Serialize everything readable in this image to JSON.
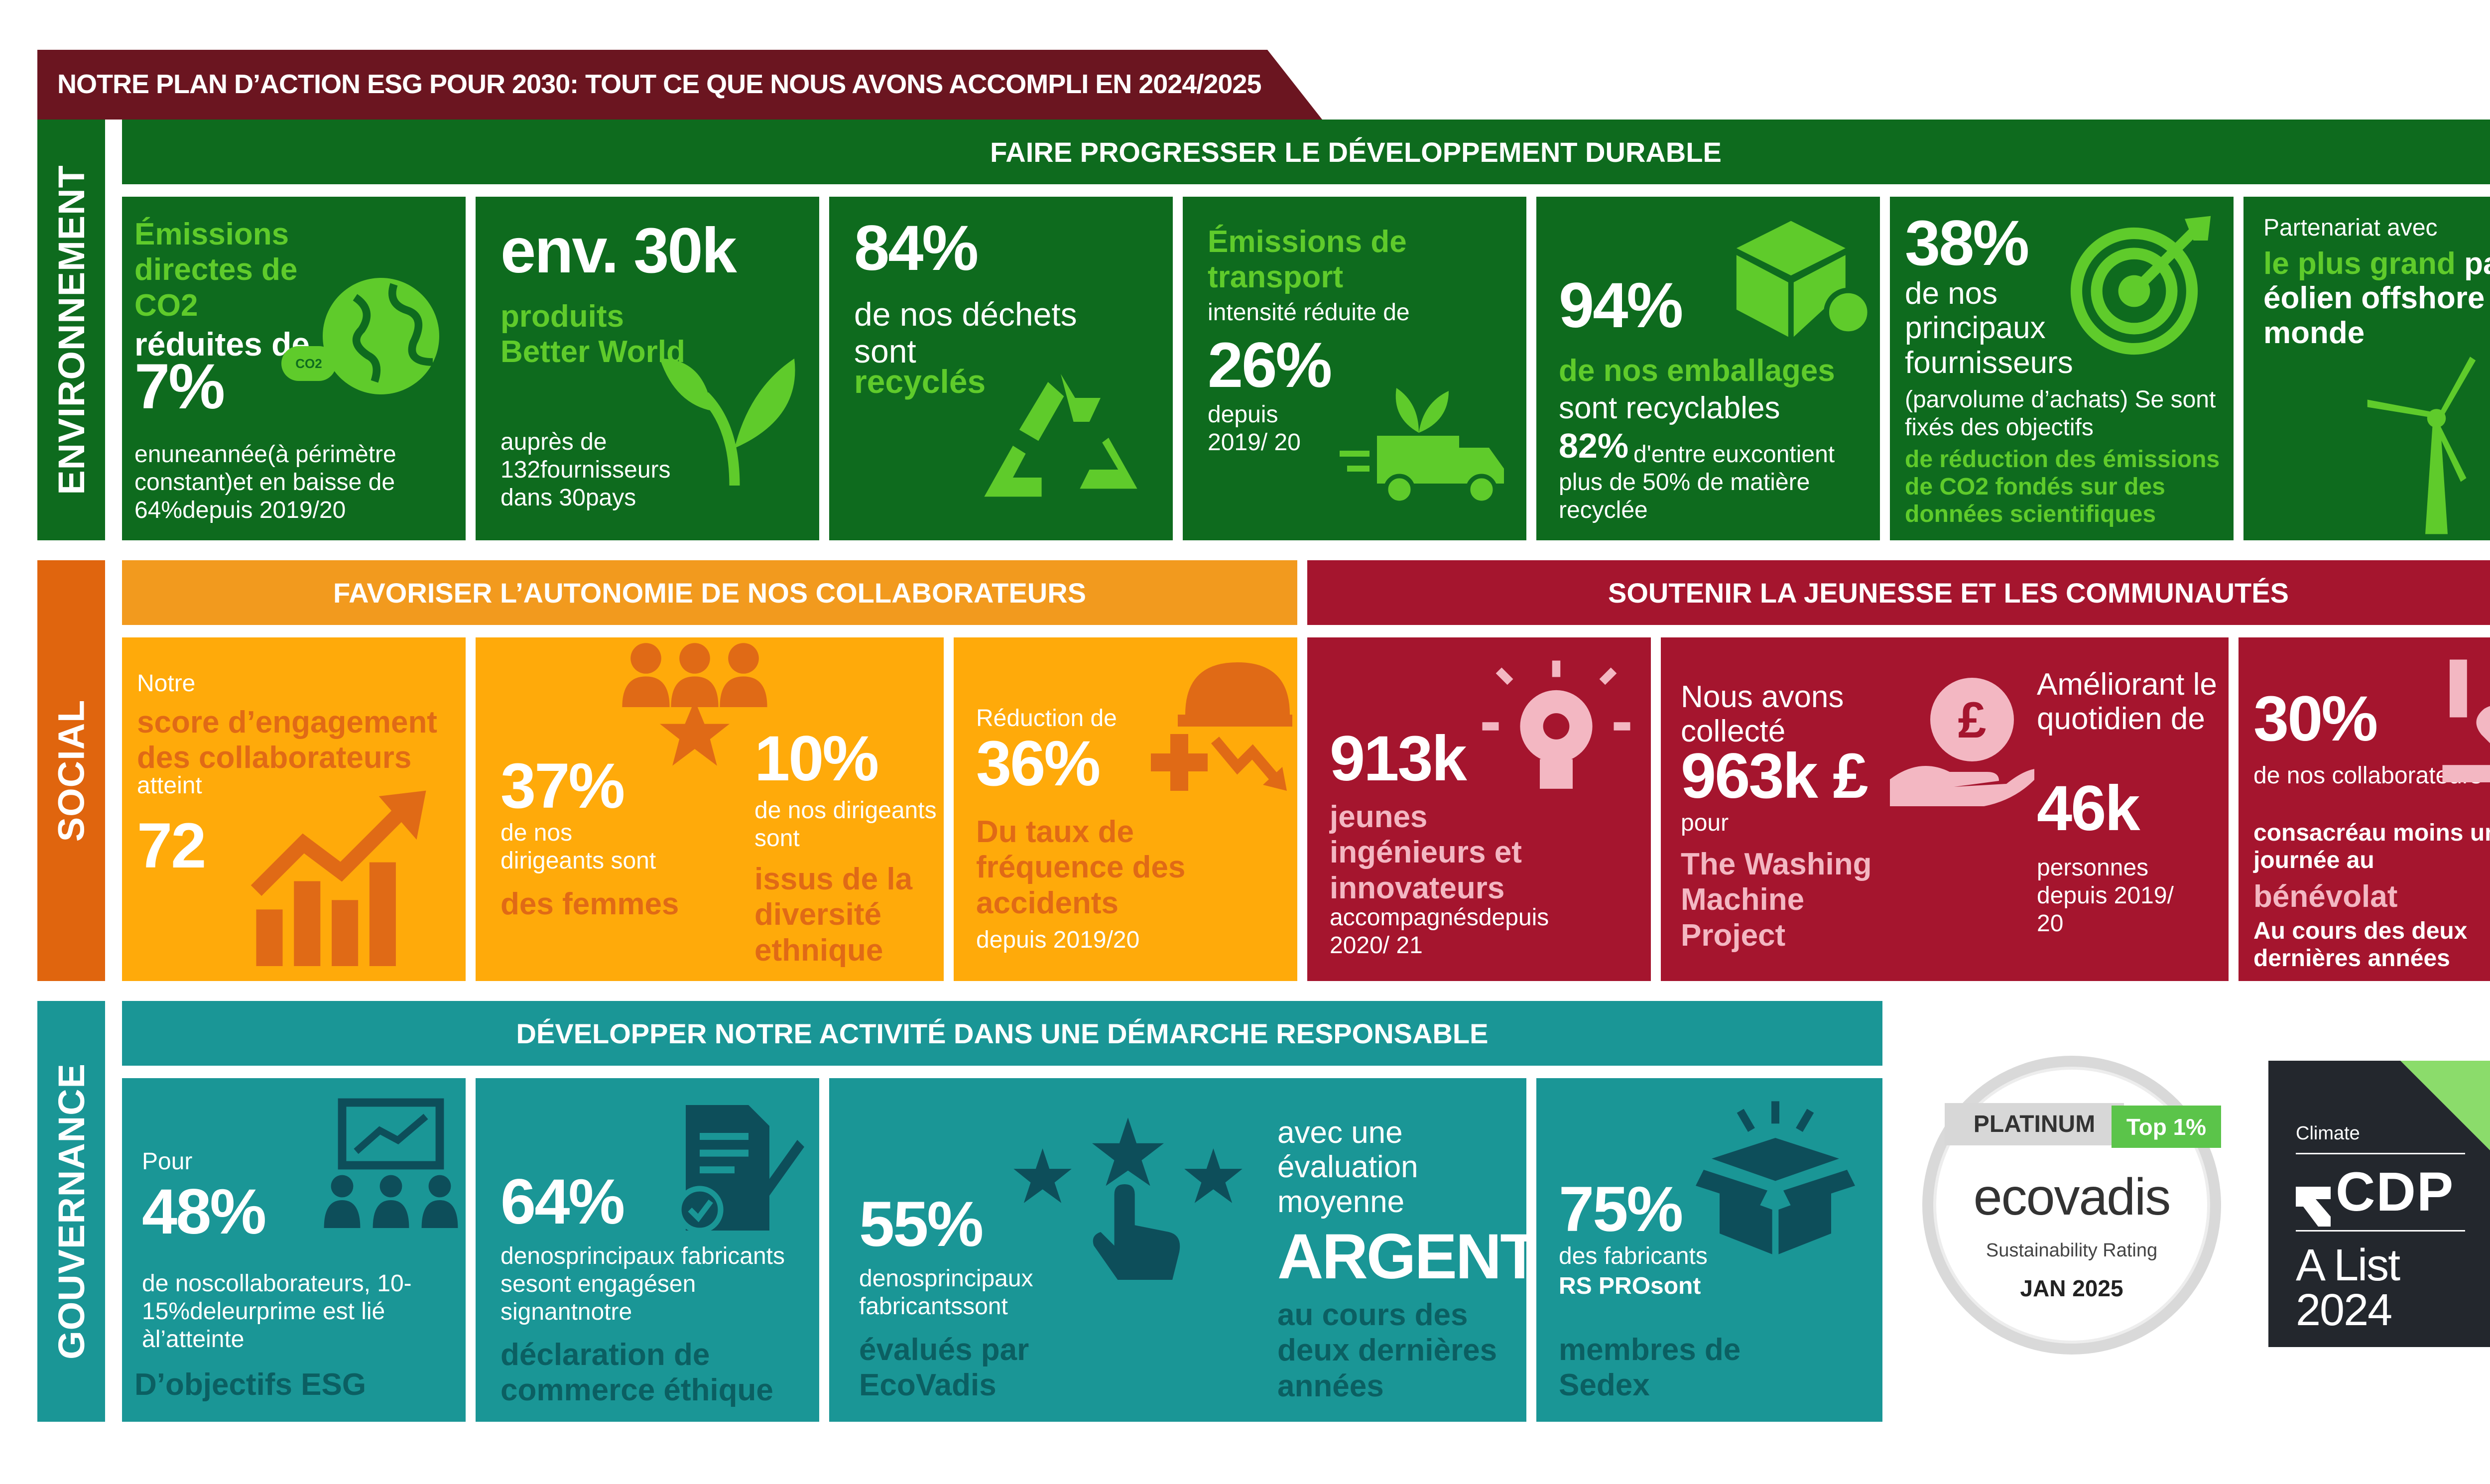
{
  "title": "NOTRE PLAN D’ACTION ESG POUR 2030: TOUT CE QUE NOUS AVONS ACCOMPLI EN 2024/2025",
  "colors": {
    "dark_red": "#6B1520",
    "green": "#0E6B1E",
    "light_green": "#5FCB2B",
    "orange": "#F29A1E",
    "yellow": "#FFAA0A",
    "orange_text": "#E06A16",
    "crimson": "#A5152E",
    "pink": "#F3B7C2",
    "teal": "#1A9696",
    "teal_dark": "#0B5F62",
    "icon_teal": "#0D4E5A"
  },
  "env": {
    "side": "ENVIRONNEMENT",
    "header": "FAIRE PROGRESSER LE DÉVELOPPEMENT DURABLE",
    "c1": {
      "hl": "Émissions directes de CO2",
      "t": "réduites de",
      "big": "7%",
      "d": "enuneannée(à périmètre constant)et en baisse de 64%depuis 2019/20",
      "icon": "globe-icon",
      "co2": "CO2"
    },
    "c2": {
      "big": "env. 30k",
      "hl": "produits Better World",
      "d": "auprès de 132fournisseurs dans 30pays",
      "icon": "leaf-icon"
    },
    "c3": {
      "big": "84%",
      "t": "de nos déchets sont",
      "hl": "recyclés",
      "icon": "recycle-icon"
    },
    "c4": {
      "hl": "Émissions de transport",
      "t": "intensité réduite de",
      "big": "26%",
      "d": "depuis 2019/ 20",
      "icon": "truck-icon"
    },
    "c5": {
      "big": "94%",
      "hl": "de nos emballages",
      "t": "sont recyclables",
      "big2": "82%",
      "t2": "d'entre euxcontient plus de 50% de matière recyclée",
      "icon": "box-icon"
    },
    "c6": {
      "big": "38%",
      "t": "de nos principaux fournisseurs",
      "d": "(parvolume d’achats) Se sont fixés des objectifs",
      "hl": "de réduction des émissions de CO2 fondés sur des données scientifiques",
      "icon": "target-icon"
    },
    "c7": {
      "t1": "Partenariat avec",
      "hl": "le plus grand",
      "t2": "parc éolien offshore au monde",
      "icon": "wind-turbine-icon"
    }
  },
  "social": {
    "side": "SOCIAL",
    "header1": "FAVORISER L’AUTONOMIE DE NOS COLLABORATEURS",
    "header2": "SOUTENIR LA JEUNESSE ET LES COMMUNAUTÉS",
    "c1": {
      "t": "Notre",
      "hl": "score d’engagement des collaborateurs",
      "t2": "atteint",
      "big": "72",
      "icon": "growth-chart-icon"
    },
    "c2": {
      "big1": "37%",
      "t1": "de nos dirigeants sont",
      "hl1": "des femmes",
      "big2": "10%",
      "t2": "de nos dirigeants sont",
      "hl2": "issus de la diversité ethnique",
      "icon": "people-icon"
    },
    "c3": {
      "t": "Réduction de",
      "big": "36%",
      "hl": "Du taux de fréquence des accidents",
      "d": "depuis 2019/20",
      "icon": "safety-helmet-icon"
    },
    "c4": {
      "big": "913k",
      "hl": "jeunes ingénieurs et innovateurs",
      "d": "accompagnésdepuis 2020/ 21",
      "icon": "lightbulb-icon"
    },
    "c5": {
      "t": "Nous avons collecté",
      "big": "963k £",
      "t2": "pour",
      "hl": "The Washing Machine Project",
      "t3": "Améliorant le quotidien de",
      "big2": "46k",
      "d": "personnes depuis 2019/ 20",
      "icon": "pound-hand-icon"
    },
    "c6": {
      "big": "30%",
      "t": "de nos collaborateurs ont",
      "t2": "consacréau moins une journée au",
      "hl": "bénévolat",
      "t3": "Au cours des deux dernières années",
      "icon": "heart-hands-icon"
    }
  },
  "gov": {
    "side": "GOUVERNANCE",
    "header": "DÉVELOPPER NOTRE ACTIVITÉ DANS UNE DÉMARCHE RESPONSABLE",
    "c1": {
      "t": "Pour",
      "big": "48%",
      "d": "de noscollaborateurs, 10-15%deleurprime est lié àl’atteinte",
      "hl": "D’objectifs ESG",
      "icon": "presentation-icon"
    },
    "c2": {
      "big": "64%",
      "d": "denosprincipaux fabricants sesont engagésen signantnotre",
      "hl": "déclaration de commerce éthique",
      "icon": "signed-document-icon"
    },
    "c3": {
      "big": "55%",
      "d": "denosprincipaux fabricantssont",
      "hl": "évalués par EcoVadis",
      "t": "avec une évaluation moyenne",
      "big2": "ARGENT",
      "hl2": "au cours des deux dernières années",
      "icon": "rating-stars-icon"
    },
    "c4": {
      "big": "75%",
      "d": "des fabricants",
      "d2": "RS PROsont",
      "hl": "membres de Sedex",
      "icon": "open-box-icon"
    },
    "ecovadis": {
      "platinum": "PLATINUM",
      "top": "Top 1%",
      "brand": "ecovadis",
      "rating": "Sustainability Rating",
      "date": "JAN 2025"
    },
    "cdp": {
      "climate": "Climate",
      "brand": "CDP",
      "list": "A List",
      "year": "2024"
    }
  }
}
